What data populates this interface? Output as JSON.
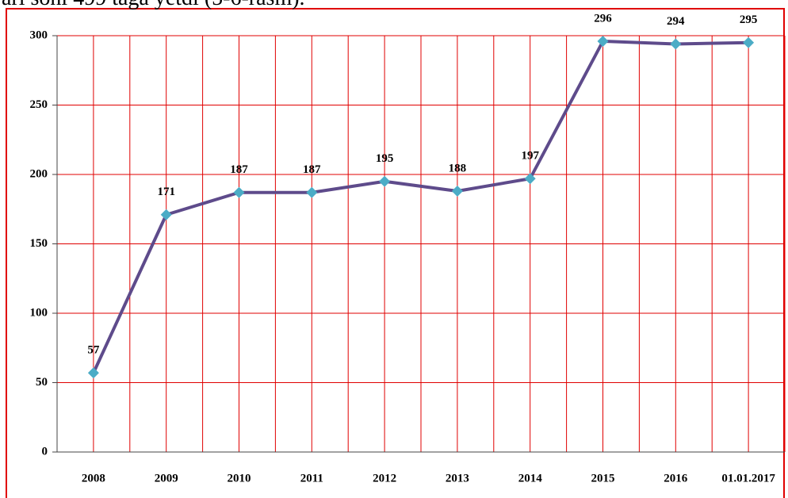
{
  "caption": "ari soni 499 taga yetdi (5-6-rasm).",
  "chart_data": {
    "type": "line",
    "categories": [
      "2008",
      "2009",
      "2010",
      "2011",
      "2012",
      "2013",
      "2014",
      "2015",
      "2016",
      "01.01.2017"
    ],
    "series": [
      {
        "color": "#5e4b8b",
        "marker_color": "#4bacc6",
        "values": [
          57,
          171,
          187,
          187,
          195,
          188,
          197,
          296,
          294,
          295
        ]
      }
    ],
    "ylim": [
      0,
      300
    ],
    "yticks": [
      0,
      50,
      100,
      150,
      200,
      250,
      300
    ],
    "grid": true,
    "grid_color": "#e00000"
  }
}
